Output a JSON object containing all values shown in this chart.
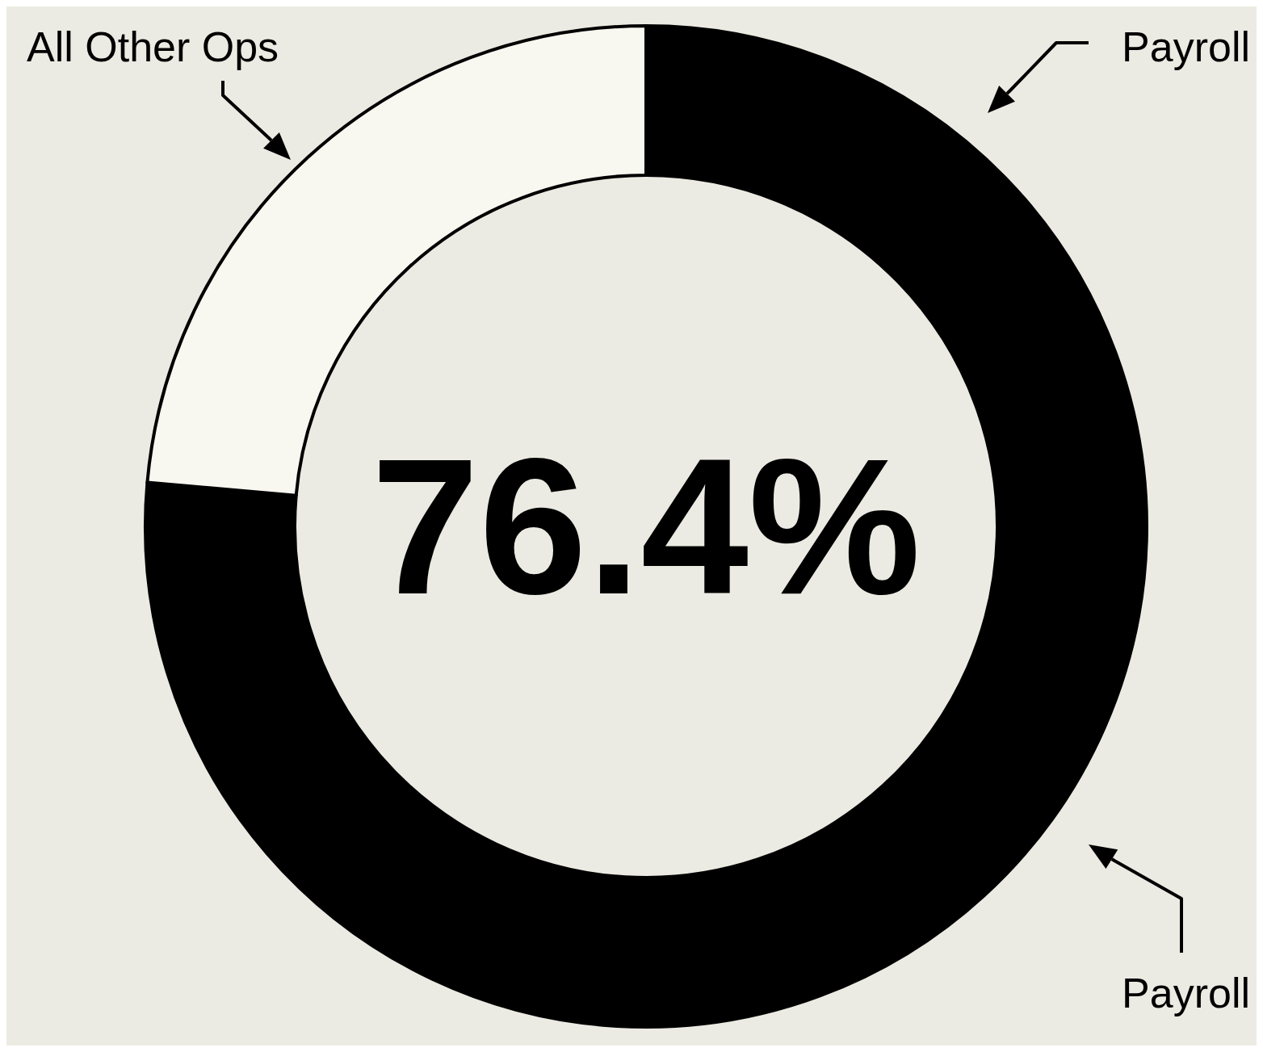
{
  "chart_data": {
    "type": "donut",
    "categories": [
      "Payroll",
      "All Other Ops"
    ],
    "values": [
      76.4,
      23.6
    ],
    "colors": [
      "#000000",
      "#f8f7f0"
    ],
    "annotations": [
      "76.4%",
      "Payroll"
    ]
  }
}
